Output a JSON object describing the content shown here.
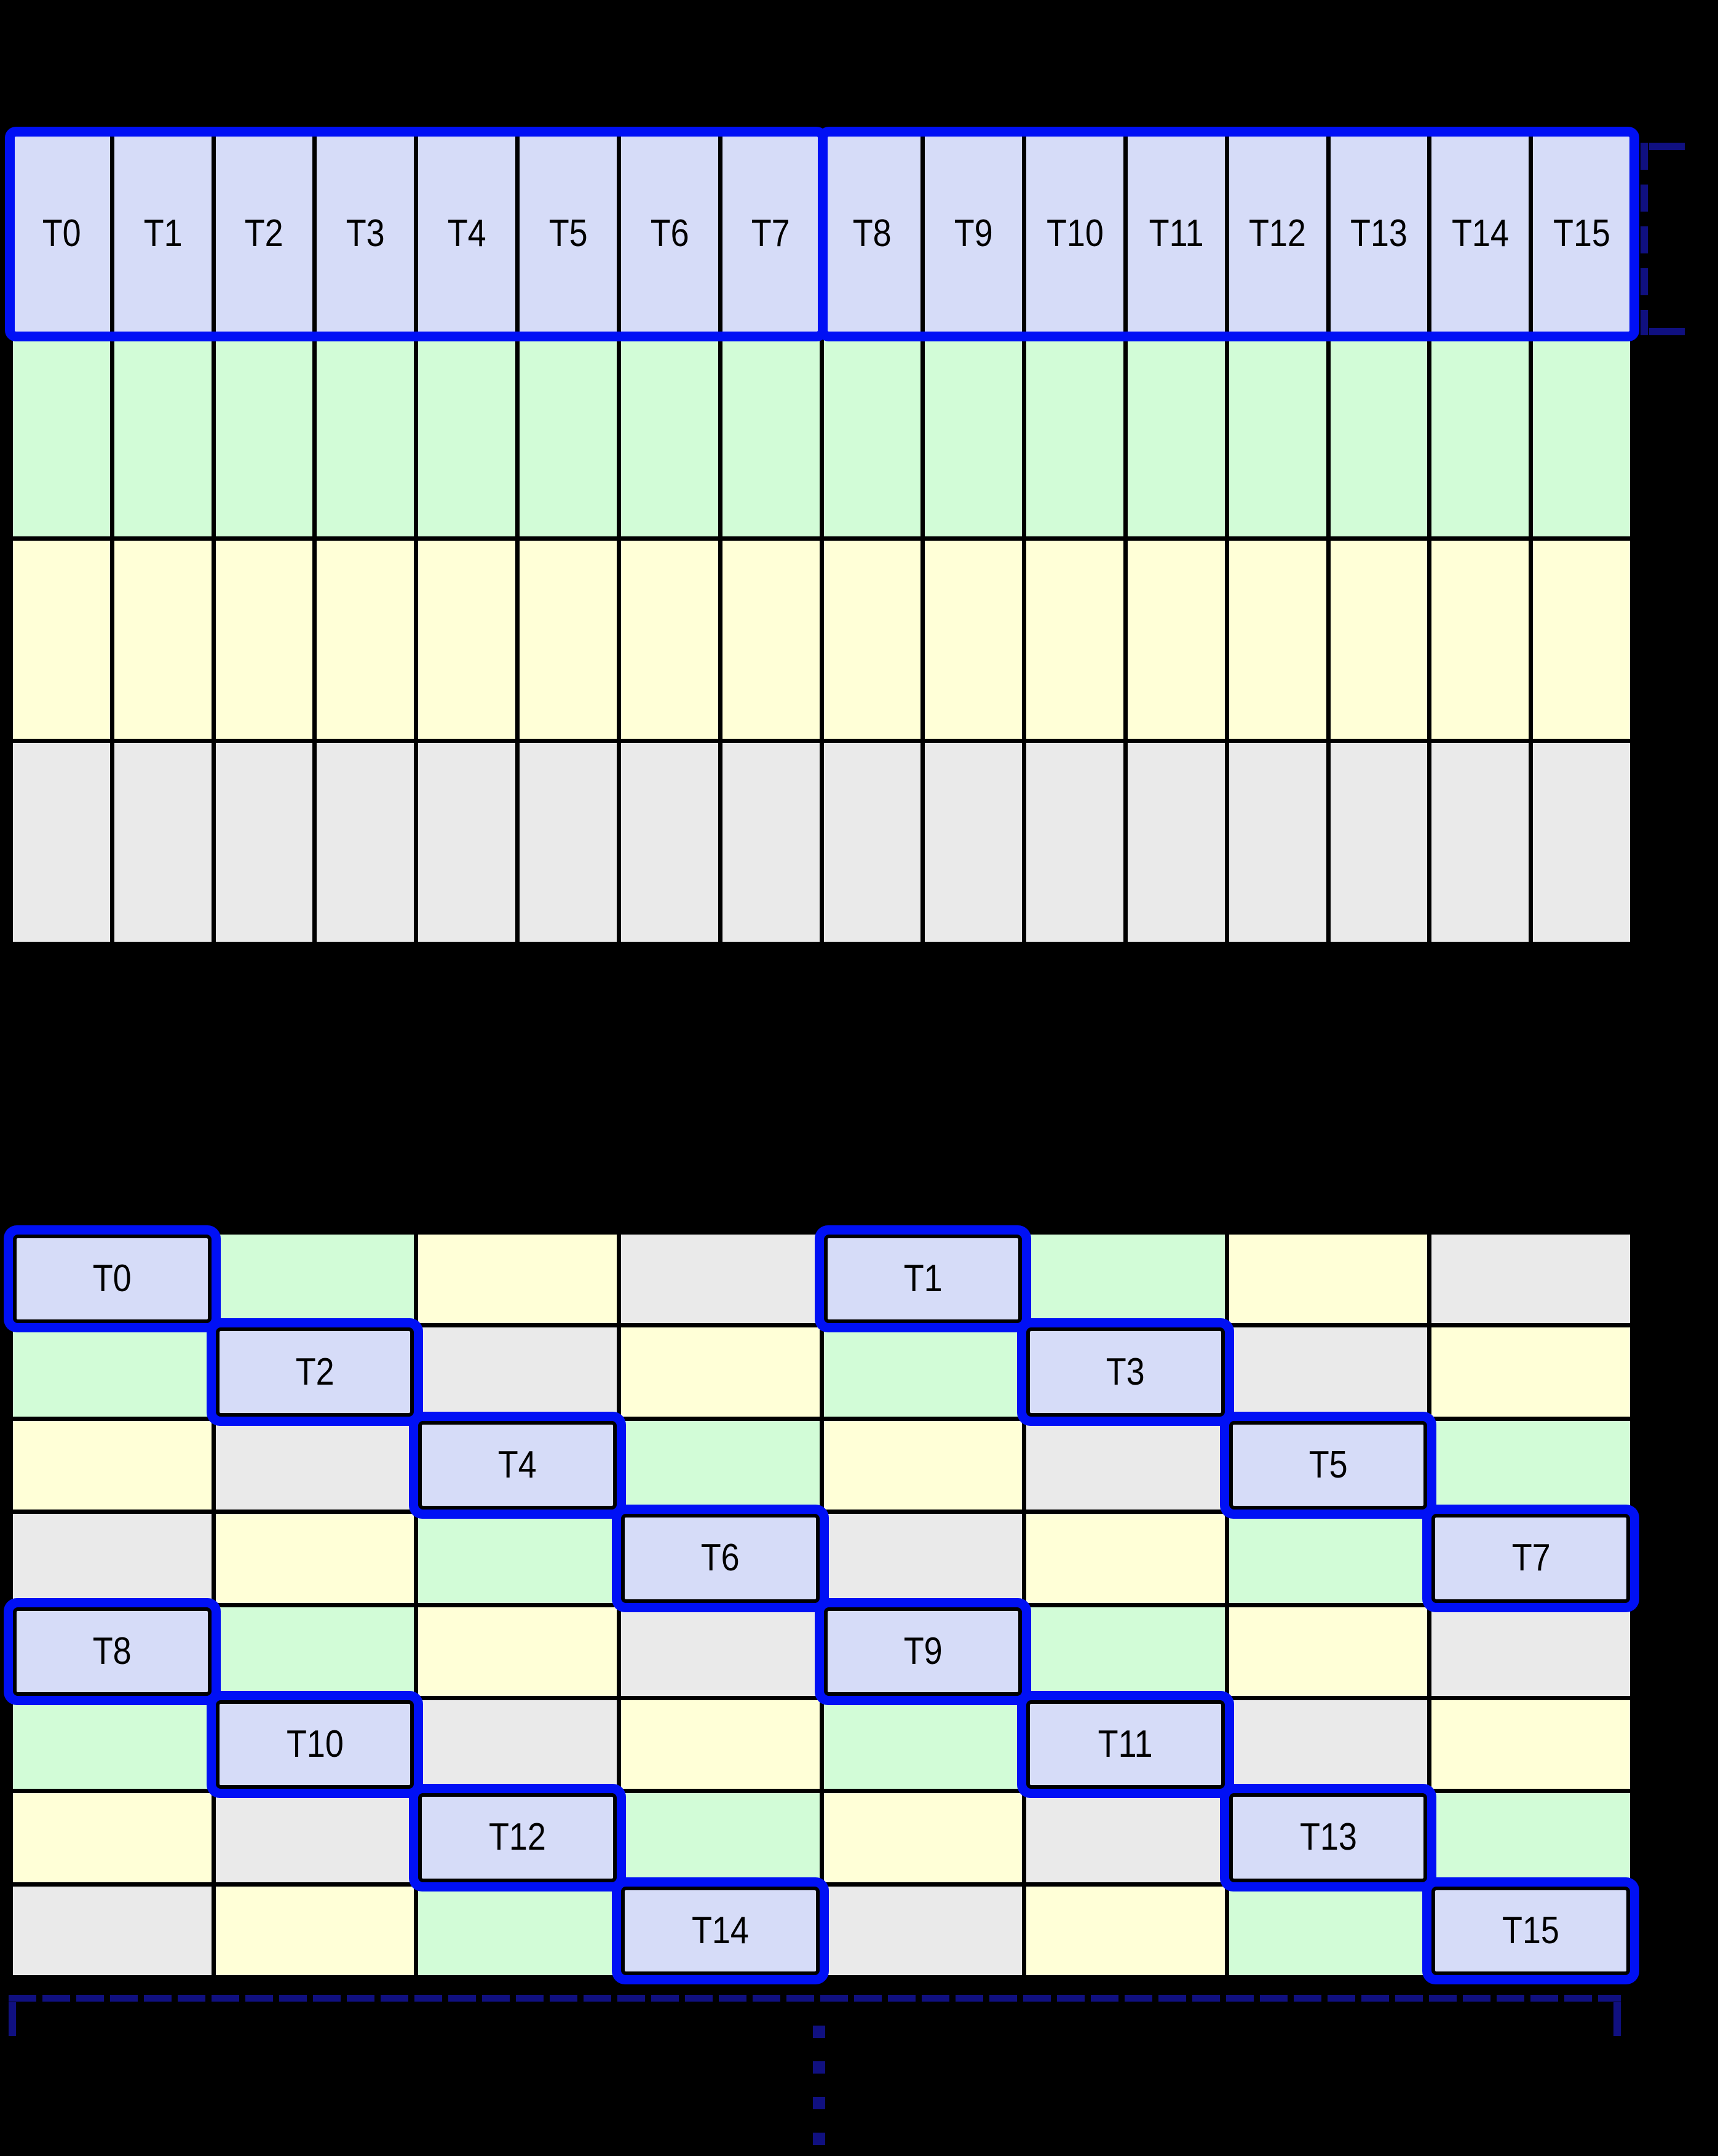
{
  "colors": {
    "background": "#000000",
    "thread_fill": "#d6dcf8",
    "green_fill": "#d2fcd7",
    "yellow_fill": "#ffffd7",
    "gray_fill": "#eaeaea",
    "grid_line": "#000000",
    "thread_outline": "#0010f5",
    "bracket": "#101080",
    "label_text": "#000000"
  },
  "top_grid": {
    "columns": 16,
    "header_labels": [
      "T0",
      "T1",
      "T2",
      "T3",
      "T4",
      "T5",
      "T6",
      "T7",
      "T8",
      "T9",
      "T10",
      "T11",
      "T12",
      "T13",
      "T14",
      "T15"
    ],
    "body_rows": [
      "g",
      "y",
      "e"
    ],
    "warp_groups": [
      {
        "first_label": "T0",
        "last_label": "T7"
      },
      {
        "first_label": "T8",
        "last_label": "T15"
      }
    ]
  },
  "bottom_grid": {
    "columns": 8,
    "pattern": [
      [
        "T0",
        "g",
        "y",
        "e",
        "T1",
        "g",
        "y",
        "e"
      ],
      [
        "g",
        "T2",
        "e",
        "y",
        "g",
        "T3",
        "e",
        "y"
      ],
      [
        "y",
        "e",
        "T4",
        "g",
        "y",
        "e",
        "T5",
        "g"
      ],
      [
        "e",
        "y",
        "g",
        "T6",
        "e",
        "y",
        "g",
        "T7"
      ],
      [
        "T8",
        "g",
        "y",
        "e",
        "T9",
        "g",
        "y",
        "e"
      ],
      [
        "g",
        "T10",
        "e",
        "y",
        "g",
        "T11",
        "e",
        "y"
      ],
      [
        "y",
        "e",
        "T12",
        "g",
        "y",
        "e",
        "T13",
        "g"
      ],
      [
        "e",
        "y",
        "g",
        "T14",
        "e",
        "y",
        "g",
        "T15"
      ]
    ]
  }
}
